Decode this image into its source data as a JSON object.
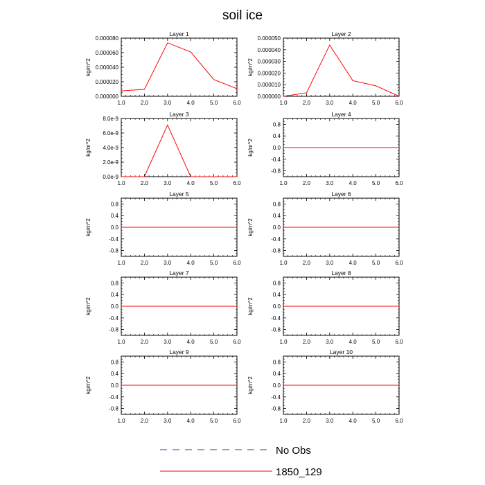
{
  "title": "soil ice",
  "chart_data": [
    {
      "type": "line",
      "title": "Layer 1",
      "ylabel": "kg/m^2",
      "x": [
        1,
        2,
        3,
        4,
        5,
        6
      ],
      "xlim": [
        1,
        6
      ],
      "xticks": [
        "1.0",
        "2.0",
        "3.0",
        "4.0",
        "5.0",
        "6.0"
      ],
      "ylim": [
        0,
        8e-05
      ],
      "yticks": [
        0,
        2e-05,
        4e-05,
        6e-05,
        8e-05
      ],
      "yticklabels": [
        "0.000000",
        "0.000020",
        "0.000040",
        "0.000060",
        "0.000080"
      ],
      "series": [
        {
          "name": "1850_129",
          "color": "#ff0000",
          "values": [
            7.5e-06,
            9.5e-06,
            7.35e-05,
            6.1e-05,
            2.3e-05,
            1.05e-05
          ]
        }
      ]
    },
    {
      "type": "line",
      "title": "Layer 2",
      "ylabel": "kg/m^2",
      "x": [
        1,
        2,
        3,
        4,
        5,
        6
      ],
      "xlim": [
        1,
        6
      ],
      "xticks": [
        "1.0",
        "2.0",
        "3.0",
        "4.0",
        "5.0",
        "6.0"
      ],
      "ylim": [
        0,
        5e-05
      ],
      "yticks": [
        0,
        1e-05,
        2e-05,
        3e-05,
        4e-05,
        5e-05
      ],
      "yticklabels": [
        "0.000000",
        "0.000010",
        "0.000020",
        "0.000030",
        "0.000040",
        "0.000050"
      ],
      "series": [
        {
          "name": "1850_129",
          "color": "#ff0000",
          "values": [
            0,
            3e-06,
            4.4e-05,
            1.35e-05,
            9e-06,
            0
          ]
        }
      ]
    },
    {
      "type": "line",
      "title": "Layer 3",
      "ylabel": "kg/m^2",
      "x": [
        1,
        2,
        3,
        4,
        5,
        6
      ],
      "xlim": [
        1,
        6
      ],
      "xticks": [
        "1.0",
        "2.0",
        "3.0",
        "4.0",
        "5.0",
        "6.0"
      ],
      "ylim": [
        0,
        8e-09
      ],
      "yticks": [
        0,
        2e-09,
        4e-09,
        6e-09,
        8e-09
      ],
      "yticklabels": [
        "0.0e-9",
        "2.0e-9",
        "4.0e-9",
        "6.0e-9",
        "8.0e-9"
      ],
      "series": [
        {
          "name": "1850_129",
          "color": "#ff0000",
          "values": [
            0,
            0,
            7.1e-09,
            0,
            0,
            0
          ]
        }
      ]
    },
    {
      "type": "line",
      "title": "Layer 4",
      "ylabel": "kg/m^2",
      "x": [
        1,
        2,
        3,
        4,
        5,
        6
      ],
      "xlim": [
        1,
        6
      ],
      "xticks": [
        "1.0",
        "2.0",
        "3.0",
        "4.0",
        "5.0",
        "6.0"
      ],
      "ylim": [
        -1,
        1
      ],
      "yticks": [
        -0.8,
        -0.4,
        0,
        0.4,
        0.8
      ],
      "yticklabels": [
        "-0.8",
        "-0.4",
        "0.0",
        "0.4",
        "0.8"
      ],
      "series": [
        {
          "name": "1850_129",
          "color": "#ff0000",
          "values": [
            0,
            0,
            0,
            0,
            0,
            0
          ]
        }
      ]
    },
    {
      "type": "line",
      "title": "Layer 5",
      "ylabel": "kg/m^2",
      "x": [
        1,
        2,
        3,
        4,
        5,
        6
      ],
      "xlim": [
        1,
        6
      ],
      "xticks": [
        "1.0",
        "2.0",
        "3.0",
        "4.0",
        "5.0",
        "6.0"
      ],
      "ylim": [
        -1,
        1
      ],
      "yticks": [
        -0.8,
        -0.4,
        0,
        0.4,
        0.8
      ],
      "yticklabels": [
        "-0.8",
        "-0.4",
        "0.0",
        "0.4",
        "0.8"
      ],
      "series": [
        {
          "name": "1850_129",
          "color": "#ff0000",
          "values": [
            0,
            0,
            0,
            0,
            0,
            0
          ]
        }
      ]
    },
    {
      "type": "line",
      "title": "Layer 6",
      "ylabel": "kg/m^2",
      "x": [
        1,
        2,
        3,
        4,
        5,
        6
      ],
      "xlim": [
        1,
        6
      ],
      "xticks": [
        "1.0",
        "2.0",
        "3.0",
        "4.0",
        "5.0",
        "6.0"
      ],
      "ylim": [
        -1,
        1
      ],
      "yticks": [
        -0.8,
        -0.4,
        0,
        0.4,
        0.8
      ],
      "yticklabels": [
        "-0.8",
        "-0.4",
        "0.0",
        "0.4",
        "0.8"
      ],
      "series": [
        {
          "name": "1850_129",
          "color": "#ff0000",
          "values": [
            0,
            0,
            0,
            0,
            0,
            0
          ]
        }
      ]
    },
    {
      "type": "line",
      "title": "Layer 7",
      "ylabel": "kg/m^2",
      "x": [
        1,
        2,
        3,
        4,
        5,
        6
      ],
      "xlim": [
        1,
        6
      ],
      "xticks": [
        "1.0",
        "2.0",
        "3.0",
        "4.0",
        "5.0",
        "6.0"
      ],
      "ylim": [
        -1,
        1
      ],
      "yticks": [
        -0.8,
        -0.4,
        0,
        0.4,
        0.8
      ],
      "yticklabels": [
        "-0.8",
        "-0.4",
        "0.0",
        "0.4",
        "0.8"
      ],
      "series": [
        {
          "name": "1850_129",
          "color": "#ff0000",
          "values": [
            0,
            0,
            0,
            0,
            0,
            0
          ]
        }
      ]
    },
    {
      "type": "line",
      "title": "Layer 8",
      "ylabel": "kg/m^2",
      "x": [
        1,
        2,
        3,
        4,
        5,
        6
      ],
      "xlim": [
        1,
        6
      ],
      "xticks": [
        "1.0",
        "2.0",
        "3.0",
        "4.0",
        "5.0",
        "6.0"
      ],
      "ylim": [
        -1,
        1
      ],
      "yticks": [
        -0.8,
        -0.4,
        0,
        0.4,
        0.8
      ],
      "yticklabels": [
        "-0.8",
        "-0.4",
        "0.0",
        "0.4",
        "0.8"
      ],
      "series": [
        {
          "name": "1850_129",
          "color": "#ff0000",
          "values": [
            0,
            0,
            0,
            0,
            0,
            0
          ]
        }
      ]
    },
    {
      "type": "line",
      "title": "Layer 9",
      "ylabel": "kg/m^2",
      "x": [
        1,
        2,
        3,
        4,
        5,
        6
      ],
      "xlim": [
        1,
        6
      ],
      "xticks": [
        "1.0",
        "2.0",
        "3.0",
        "4.0",
        "5.0",
        "6.0"
      ],
      "ylim": [
        -1,
        1
      ],
      "yticks": [
        -0.8,
        -0.4,
        0,
        0.4,
        0.8
      ],
      "yticklabels": [
        "-0.8",
        "-0.4",
        "0.0",
        "0.4",
        "0.8"
      ],
      "series": [
        {
          "name": "1850_129",
          "color": "#ff0000",
          "values": [
            0,
            0,
            0,
            0,
            0,
            0
          ]
        }
      ]
    },
    {
      "type": "line",
      "title": "Layer 10",
      "ylabel": "kg/m^2",
      "x": [
        1,
        2,
        3,
        4,
        5,
        6
      ],
      "xlim": [
        1,
        6
      ],
      "xticks": [
        "1.0",
        "2.0",
        "3.0",
        "4.0",
        "5.0",
        "6.0"
      ],
      "ylim": [
        -1,
        1
      ],
      "yticks": [
        -0.8,
        -0.4,
        0,
        0.4,
        0.8
      ],
      "yticklabels": [
        "-0.8",
        "-0.4",
        "0.0",
        "0.4",
        "0.8"
      ],
      "series": [
        {
          "name": "1850_129",
          "color": "#ff0000",
          "values": [
            0,
            0,
            0,
            0,
            0,
            0
          ]
        }
      ]
    }
  ],
  "legend": [
    {
      "label": "No Obs",
      "color": "#3333aa",
      "style": "dashed"
    },
    {
      "label": "1850_129",
      "color": "#ff0000",
      "style": "solid"
    }
  ]
}
